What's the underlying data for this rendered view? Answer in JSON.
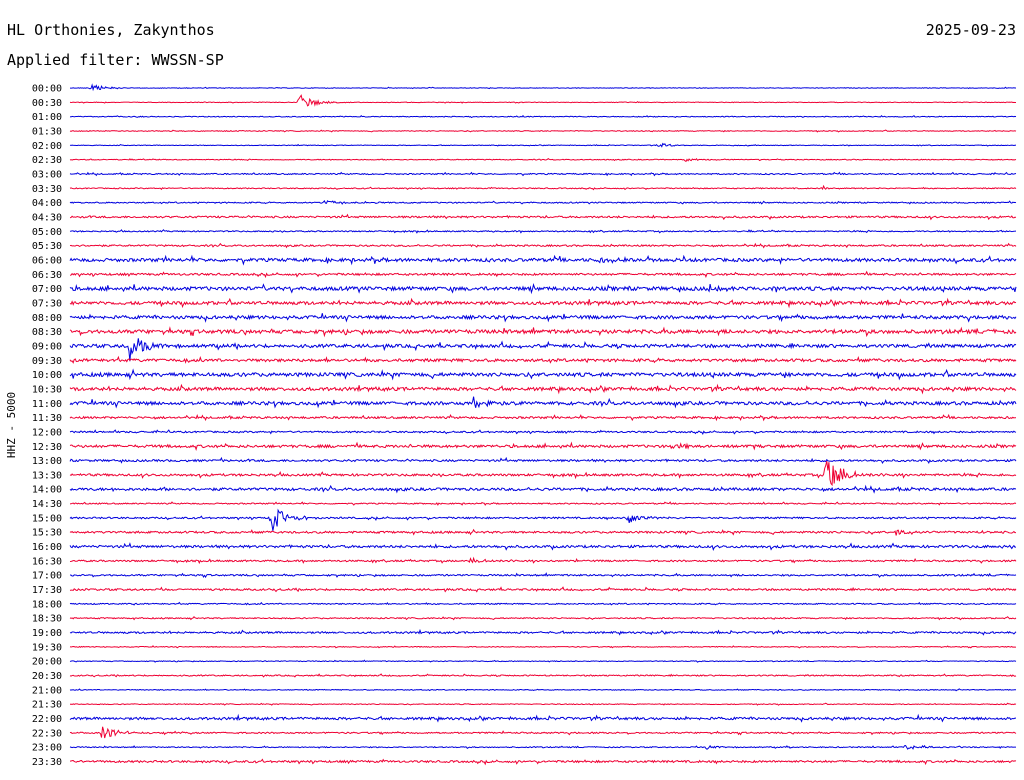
{
  "header": {
    "station": "HL Orthonies, Zakynthos",
    "filter_label": "Applied filter: WWSSN-SP",
    "date": "2025-09-23"
  },
  "colors": {
    "even_trace": "#0000dd",
    "odd_trace": "#ee0033",
    "text": "#000000",
    "background": "#ffffff"
  },
  "chart_data": {
    "type": "line",
    "title": "HL Orthonies, Zakynthos",
    "subtitle": "Applied filter: WWSSN-SP",
    "date": "2025-09-23",
    "ylabel": "HHZ - 5000",
    "row_labels": [
      "00:00",
      "00:30",
      "01:00",
      "01:30",
      "02:00",
      "02:30",
      "03:00",
      "03:30",
      "04:00",
      "04:30",
      "05:00",
      "05:30",
      "06:00",
      "06:30",
      "07:00",
      "07:30",
      "08:00",
      "08:30",
      "09:00",
      "09:30",
      "10:00",
      "10:30",
      "11:00",
      "11:30",
      "12:00",
      "12:30",
      "13:00",
      "13:30",
      "14:00",
      "14:30",
      "15:00",
      "15:30",
      "16:00",
      "16:30",
      "17:00",
      "17:30",
      "18:00",
      "18:30",
      "19:00",
      "19:30",
      "20:00",
      "20:30",
      "21:00",
      "21:30",
      "22:00",
      "22:30",
      "23:00",
      "23:30"
    ],
    "trace_minutes": 30,
    "noise_level": [
      0.3,
      0.3,
      0.4,
      0.4,
      0.3,
      0.4,
      0.6,
      0.5,
      0.6,
      0.9,
      0.6,
      0.8,
      1.6,
      1.0,
      1.8,
      1.6,
      1.6,
      1.8,
      1.6,
      1.4,
      1.8,
      1.6,
      1.6,
      1.0,
      0.8,
      1.3,
      1.0,
      1.1,
      1.3,
      0.6,
      0.8,
      1.0,
      1.2,
      0.8,
      0.8,
      0.9,
      0.6,
      0.6,
      0.9,
      0.4,
      0.4,
      0.6,
      0.4,
      0.4,
      1.2,
      0.7,
      0.5,
      1.0
    ],
    "events": [
      {
        "row": 0,
        "minute": 0.7,
        "amplitude": 4
      },
      {
        "row": 1,
        "minute": 7.3,
        "amplitude": 8
      },
      {
        "row": 4,
        "minute": 18.7,
        "amplitude": 2
      },
      {
        "row": 5,
        "minute": 19.5,
        "amplitude": 2
      },
      {
        "row": 7,
        "minute": 23.9,
        "amplitude": 2
      },
      {
        "row": 8,
        "minute": 8.1,
        "amplitude": 3
      },
      {
        "row": 12,
        "minute": 16.8,
        "amplitude": 5
      },
      {
        "row": 14,
        "minute": 20.3,
        "amplitude": 3
      },
      {
        "row": 18,
        "minute": 1.9,
        "amplitude": 15
      },
      {
        "row": 22,
        "minute": 12.8,
        "amplitude": 6
      },
      {
        "row": 25,
        "minute": 19.1,
        "amplitude": 3
      },
      {
        "row": 27,
        "minute": 24.0,
        "amplitude": 22
      },
      {
        "row": 30,
        "minute": 6.4,
        "amplitude": 14
      },
      {
        "row": 30,
        "minute": 17.7,
        "amplitude": 6
      },
      {
        "row": 31,
        "minute": 26.2,
        "amplitude": 4
      },
      {
        "row": 33,
        "minute": 12.7,
        "amplitude": 3
      },
      {
        "row": 45,
        "minute": 1.0,
        "amplitude": 8
      },
      {
        "row": 46,
        "minute": 26.5,
        "amplitude": 3
      },
      {
        "row": 46,
        "minute": 20.2,
        "amplitude": 2
      }
    ]
  }
}
